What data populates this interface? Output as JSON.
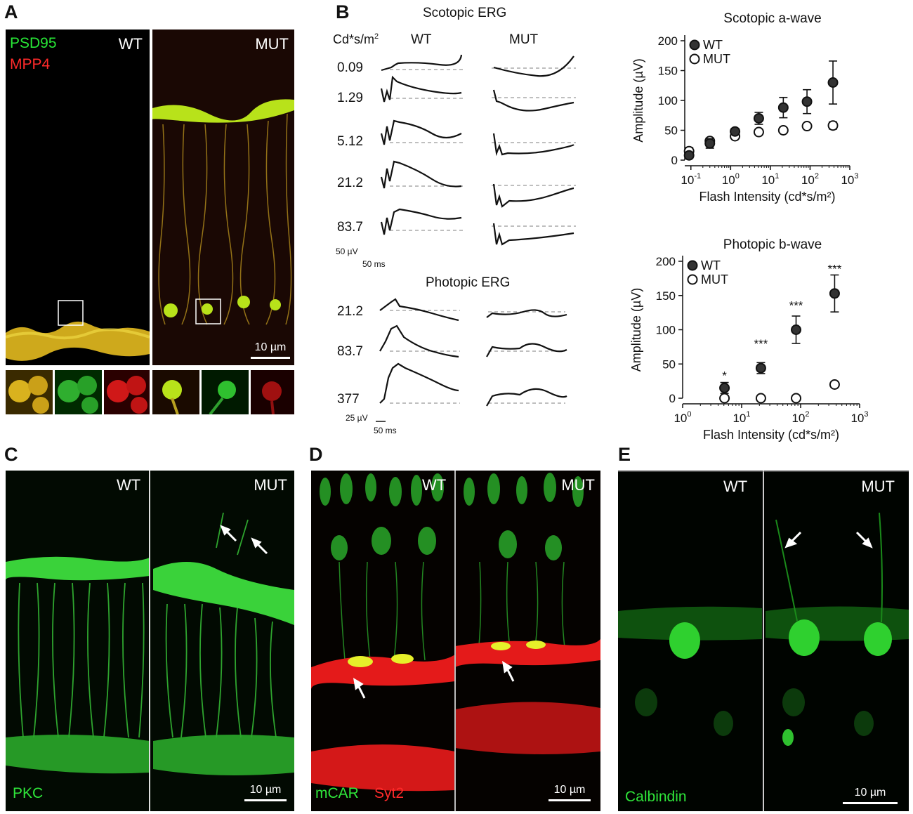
{
  "panels": {
    "A": {
      "letter": "A",
      "wt_label": "WT",
      "mut_label": "MUT",
      "stain1": "PSD95",
      "stain1_color": "#27e636",
      "stain2": "MPP4",
      "stain2_color": "#ff2a2a",
      "scale": "10 µm"
    },
    "B": {
      "letter": "B",
      "scotopic_title": "Scotopic ERG",
      "photopic_title": "Photopic ERG",
      "unit_label": "Cd*s/m",
      "unit_sup": "2",
      "wt": "WT",
      "mut": "MUT",
      "scotopic_intensities": [
        "0.09",
        "1.29",
        "5.12",
        "21.2",
        "83.7"
      ],
      "photopic_intensities": [
        "21.2",
        "83.7",
        "377"
      ],
      "scot_scale_v": "50 µV",
      "scot_scale_t": "50 ms",
      "phot_scale_v": "25 µV",
      "phot_scale_t": "50 ms"
    },
    "C": {
      "letter": "C",
      "wt_label": "WT",
      "mut_label": "MUT",
      "stain": "PKC",
      "scale": "10 µm"
    },
    "D": {
      "letter": "D",
      "wt_label": "WT",
      "mut_label": "MUT",
      "stain1": "mCAR",
      "stain2": "Syt2",
      "scale": "10 µm"
    },
    "E": {
      "letter": "E",
      "wt_label": "WT",
      "mut_label": "MUT",
      "stain": "Calbindin",
      "scale": "10 µm"
    }
  },
  "chart_data": [
    {
      "type": "scatter",
      "title": "Scotopic a-wave",
      "xlabel": "Flash Intensity (cd*s/m²)",
      "ylabel": "Amplitude (µV)",
      "xscale": "log",
      "xlim": [
        0.07,
        1000
      ],
      "ylim": [
        0,
        200
      ],
      "xticks": [
        0.1,
        1,
        10,
        100,
        1000
      ],
      "xtick_labels": [
        [
          "10",
          "-1"
        ],
        [
          "10",
          "0"
        ],
        [
          "10",
          "1"
        ],
        [
          "10",
          "2"
        ],
        [
          "10",
          "3"
        ]
      ],
      "yticks": [
        0,
        50,
        100,
        150,
        200
      ],
      "legend": "top-left",
      "series": [
        {
          "name": "WT",
          "marker": "filled",
          "x": [
            0.09,
            0.3,
            1.29,
            5.12,
            21.2,
            83.7,
            377
          ],
          "y": [
            8,
            28,
            48,
            70,
            88,
            98,
            130
          ],
          "err": [
            5,
            8,
            5,
            10,
            17,
            20,
            36
          ]
        },
        {
          "name": "MUT",
          "marker": "open",
          "x": [
            0.09,
            0.3,
            1.29,
            5.12,
            21.2,
            83.7,
            377
          ],
          "y": [
            15,
            32,
            40,
            47,
            50,
            57,
            58
          ],
          "err": [
            6,
            5,
            4,
            4,
            4,
            4,
            6
          ]
        }
      ]
    },
    {
      "type": "scatter",
      "title": "Photopic b-wave",
      "xlabel": "Flash Intensity (cd*s/m²)",
      "ylabel": "Amplitude (µV)",
      "xscale": "log",
      "xlim": [
        1,
        1000
      ],
      "ylim": [
        0,
        200
      ],
      "xticks": [
        1,
        10,
        100,
        1000
      ],
      "xtick_labels": [
        [
          "10",
          "0"
        ],
        [
          "10",
          "1"
        ],
        [
          "10",
          "2"
        ],
        [
          "10",
          "3"
        ]
      ],
      "yticks": [
        0,
        50,
        100,
        150,
        200
      ],
      "legend": "top-left",
      "annotations": [
        {
          "x": 5.12,
          "y": 15,
          "text": "*"
        },
        {
          "x": 21.2,
          "y": 44,
          "text": "***"
        },
        {
          "x": 83.7,
          "y": 100,
          "text": "***"
        },
        {
          "x": 377,
          "y": 153,
          "text": "***"
        }
      ],
      "series": [
        {
          "name": "WT",
          "marker": "filled",
          "x": [
            5.12,
            21.2,
            83.7,
            377
          ],
          "y": [
            15,
            44,
            100,
            153
          ],
          "err": [
            8,
            8,
            20,
            27
          ]
        },
        {
          "name": "MUT",
          "marker": "open",
          "x": [
            5.12,
            21.2,
            83.7,
            377
          ],
          "y": [
            0,
            0,
            0,
            20
          ],
          "err": [
            0,
            0,
            0,
            4
          ]
        }
      ]
    }
  ]
}
